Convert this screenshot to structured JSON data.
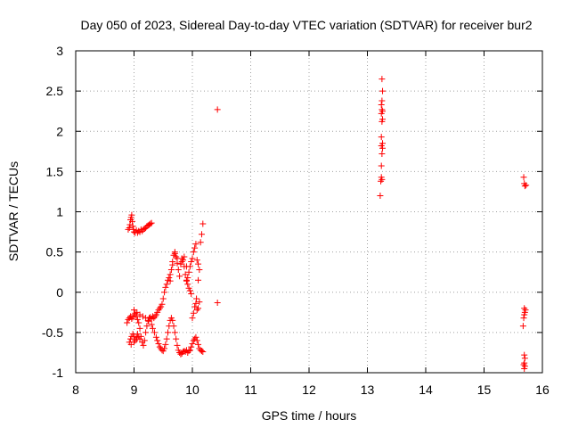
{
  "chart_data": {
    "type": "scatter",
    "title": "Day 050 of 2023, Sidereal Day-to-day VTEC variation (SDTVAR) for receiver bur2",
    "xlabel": "GPS time / hours",
    "ylabel": "SDTVAR / TECUs",
    "xlim": [
      8,
      16
    ],
    "ylim": [
      -1,
      3
    ],
    "xticks": [
      8,
      9,
      10,
      11,
      12,
      13,
      14,
      15,
      16
    ],
    "yticks": [
      -1,
      -0.5,
      0,
      0.5,
      1,
      1.5,
      2,
      2.5,
      3
    ],
    "xtick_labels": [
      "8",
      "9",
      "10",
      "11",
      "12",
      "13",
      "14",
      "15",
      "16"
    ],
    "ytick_labels": [
      "-1",
      "-0.5",
      "0",
      "0.5",
      "1",
      "1.5",
      "2",
      "2.5",
      "3"
    ],
    "grid": true,
    "marker": "+",
    "series": [
      {
        "name": "bur2",
        "color": "#ff0000",
        "points": [
          [
            8.9,
            0.78
          ],
          [
            8.92,
            0.8
          ],
          [
            8.93,
            0.84
          ],
          [
            8.94,
            0.9
          ],
          [
            8.95,
            0.93
          ],
          [
            8.96,
            0.96
          ],
          [
            8.97,
            0.88
          ],
          [
            8.98,
            0.82
          ],
          [
            8.99,
            0.78
          ],
          [
            9.0,
            0.75
          ],
          [
            9.02,
            0.74
          ],
          [
            9.04,
            0.77
          ],
          [
            9.06,
            0.74
          ],
          [
            9.08,
            0.76
          ],
          [
            9.1,
            0.75
          ],
          [
            9.12,
            0.78
          ],
          [
            9.14,
            0.76
          ],
          [
            9.16,
            0.78
          ],
          [
            9.18,
            0.79
          ],
          [
            9.2,
            0.8
          ],
          [
            9.22,
            0.82
          ],
          [
            9.24,
            0.83
          ],
          [
            9.26,
            0.84
          ],
          [
            9.28,
            0.85
          ],
          [
            9.3,
            0.86
          ],
          [
            8.88,
            -0.38
          ],
          [
            8.9,
            -0.34
          ],
          [
            8.92,
            -0.32
          ],
          [
            8.94,
            -0.3
          ],
          [
            8.96,
            -0.33
          ],
          [
            8.98,
            -0.31
          ],
          [
            9.0,
            -0.28
          ],
          [
            9.02,
            -0.26
          ],
          [
            9.04,
            -0.3
          ],
          [
            9.06,
            -0.34
          ],
          [
            9.08,
            -0.38
          ],
          [
            9.1,
            -0.45
          ],
          [
            9.12,
            -0.55
          ],
          [
            9.14,
            -0.62
          ],
          [
            9.16,
            -0.66
          ],
          [
            9.18,
            -0.6
          ],
          [
            9.2,
            -0.5
          ],
          [
            9.22,
            -0.42
          ],
          [
            9.24,
            -0.35
          ],
          [
            9.26,
            -0.32
          ],
          [
            9.28,
            -0.31
          ],
          [
            9.3,
            -0.33
          ],
          [
            9.32,
            -0.3
          ],
          [
            9.34,
            -0.32
          ],
          [
            9.36,
            -0.3
          ],
          [
            9.38,
            -0.28
          ],
          [
            9.4,
            -0.25
          ],
          [
            9.42,
            -0.22
          ],
          [
            9.44,
            -0.2
          ],
          [
            9.46,
            -0.18
          ],
          [
            8.92,
            -0.62
          ],
          [
            8.94,
            -0.58
          ],
          [
            8.96,
            -0.55
          ],
          [
            8.98,
            -0.52
          ],
          [
            9.0,
            -0.55
          ],
          [
            9.02,
            -0.6
          ],
          [
            9.04,
            -0.56
          ],
          [
            9.06,
            -0.52
          ],
          [
            9.08,
            -0.55
          ],
          [
            9.1,
            -0.58
          ],
          [
            8.95,
            -0.65
          ],
          [
            9.0,
            -0.62
          ],
          [
            9.05,
            -0.58
          ],
          [
            9.0,
            -0.22
          ],
          [
            9.05,
            -0.25
          ],
          [
            9.1,
            -0.28
          ],
          [
            9.15,
            -0.3
          ],
          [
            9.2,
            -0.32
          ],
          [
            9.25,
            -0.36
          ],
          [
            9.3,
            -0.4
          ],
          [
            9.32,
            -0.45
          ],
          [
            9.35,
            -0.5
          ],
          [
            9.38,
            -0.56
          ],
          [
            9.4,
            -0.6
          ],
          [
            9.42,
            -0.64
          ],
          [
            9.44,
            -0.68
          ],
          [
            9.46,
            -0.7
          ],
          [
            9.48,
            -0.72
          ],
          [
            9.5,
            -0.73
          ],
          [
            9.52,
            -0.7
          ],
          [
            9.54,
            -0.65
          ],
          [
            9.56,
            -0.58
          ],
          [
            9.58,
            -0.5
          ],
          [
            9.6,
            -0.42
          ],
          [
            9.62,
            -0.35
          ],
          [
            9.64,
            -0.32
          ],
          [
            9.66,
            -0.35
          ],
          [
            9.68,
            -0.42
          ],
          [
            9.7,
            -0.5
          ],
          [
            9.72,
            -0.58
          ],
          [
            9.74,
            -0.66
          ],
          [
            9.76,
            -0.72
          ],
          [
            9.78,
            -0.75
          ],
          [
            9.8,
            -0.77
          ],
          [
            9.82,
            -0.76
          ],
          [
            9.84,
            -0.74
          ],
          [
            9.86,
            -0.73
          ],
          [
            9.88,
            -0.74
          ],
          [
            9.9,
            -0.72
          ],
          [
            9.92,
            -0.75
          ],
          [
            9.94,
            -0.73
          ],
          [
            9.96,
            -0.72
          ],
          [
            9.98,
            -0.68
          ],
          [
            10.0,
            -0.64
          ],
          [
            10.02,
            -0.6
          ],
          [
            10.04,
            -0.58
          ],
          [
            10.06,
            -0.56
          ],
          [
            10.08,
            -0.6
          ],
          [
            10.1,
            -0.65
          ],
          [
            10.12,
            -0.7
          ],
          [
            10.14,
            -0.72
          ],
          [
            10.16,
            -0.73
          ],
          [
            10.18,
            -0.74
          ],
          [
            9.48,
            -0.15
          ],
          [
            9.5,
            -0.08
          ],
          [
            9.52,
            0.0
          ],
          [
            9.54,
            0.06
          ],
          [
            9.56,
            0.1
          ],
          [
            9.58,
            0.15
          ],
          [
            9.6,
            0.18
          ],
          [
            9.62,
            0.22
          ],
          [
            9.64,
            0.28
          ],
          [
            9.66,
            0.38
          ],
          [
            9.68,
            0.46
          ],
          [
            9.7,
            0.48
          ],
          [
            9.72,
            0.44
          ],
          [
            9.74,
            0.36
          ],
          [
            9.76,
            0.28
          ],
          [
            9.78,
            0.2
          ],
          [
            9.8,
            0.35
          ],
          [
            9.82,
            0.42
          ],
          [
            9.84,
            0.4
          ],
          [
            9.86,
            0.32
          ],
          [
            9.88,
            0.22
          ],
          [
            9.9,
            0.15
          ],
          [
            9.92,
            0.18
          ],
          [
            9.94,
            0.25
          ],
          [
            9.96,
            0.32
          ],
          [
            9.98,
            0.38
          ],
          [
            10.0,
            0.42
          ],
          [
            10.02,
            0.5
          ],
          [
            10.04,
            0.55
          ],
          [
            10.06,
            0.6
          ],
          [
            10.08,
            0.4
          ],
          [
            10.1,
            0.35
          ],
          [
            10.12,
            0.28
          ],
          [
            10.14,
            0.62
          ],
          [
            10.16,
            0.72
          ],
          [
            10.18,
            0.85
          ],
          [
            9.62,
            0.14
          ],
          [
            9.66,
            0.34
          ],
          [
            9.7,
            0.5
          ],
          [
            9.74,
            0.42
          ],
          [
            9.82,
            0.38
          ],
          [
            9.86,
            0.44
          ],
          [
            9.9,
            0.32
          ],
          [
            9.9,
            0.14
          ],
          [
            9.92,
            0.1
          ],
          [
            9.94,
            0.05
          ],
          [
            9.96,
            0.02
          ],
          [
            9.98,
            -0.02
          ],
          [
            10.0,
            -0.32
          ],
          [
            10.02,
            -0.26
          ],
          [
            10.04,
            -0.18
          ],
          [
            10.06,
            -0.14
          ],
          [
            10.08,
            -0.22
          ],
          [
            10.1,
            -0.2
          ],
          [
            10.12,
            -0.12
          ],
          [
            10.07,
            -0.08
          ],
          [
            10.1,
            0.15
          ],
          [
            10.43,
            2.27
          ],
          [
            10.43,
            -0.13
          ],
          [
            13.22,
            1.2
          ],
          [
            13.23,
            1.38
          ],
          [
            13.24,
            1.43
          ],
          [
            13.25,
            1.4
          ],
          [
            13.24,
            1.57
          ],
          [
            13.25,
            1.72
          ],
          [
            13.26,
            1.79
          ],
          [
            13.24,
            1.82
          ],
          [
            13.26,
            1.85
          ],
          [
            13.24,
            1.93
          ],
          [
            13.25,
            2.12
          ],
          [
            13.26,
            2.15
          ],
          [
            13.24,
            2.22
          ],
          [
            13.25,
            2.27
          ],
          [
            13.26,
            2.25
          ],
          [
            13.24,
            2.33
          ],
          [
            13.25,
            2.38
          ],
          [
            13.26,
            2.5
          ],
          [
            13.25,
            2.65
          ],
          [
            15.68,
            1.43
          ],
          [
            15.69,
            1.35
          ],
          [
            15.7,
            1.32
          ],
          [
            15.72,
            1.33
          ],
          [
            15.69,
            -0.2
          ],
          [
            15.7,
            -0.25
          ],
          [
            15.71,
            -0.22
          ],
          [
            15.68,
            -0.32
          ],
          [
            15.69,
            -0.28
          ],
          [
            15.67,
            -0.42
          ],
          [
            15.69,
            -0.78
          ],
          [
            15.7,
            -0.82
          ],
          [
            15.69,
            -0.88
          ],
          [
            15.68,
            -0.9
          ],
          [
            15.7,
            -0.92
          ],
          [
            15.69,
            -0.95
          ]
        ]
      }
    ]
  }
}
